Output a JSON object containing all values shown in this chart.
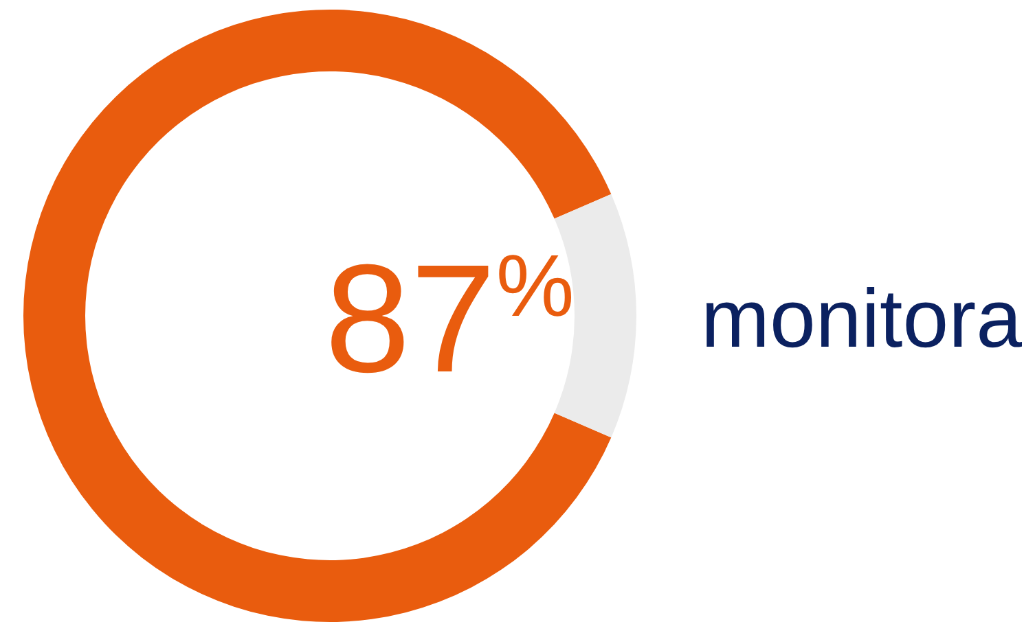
{
  "chart_data": {
    "type": "donut",
    "categories": [
      null,
      null
    ],
    "values": [
      87,
      13
    ],
    "colors": [
      "#e95c0e",
      "#ebebeb"
    ],
    "annotations": [
      "87$^{%}$",
      "monitora"
    ]
  }
}
